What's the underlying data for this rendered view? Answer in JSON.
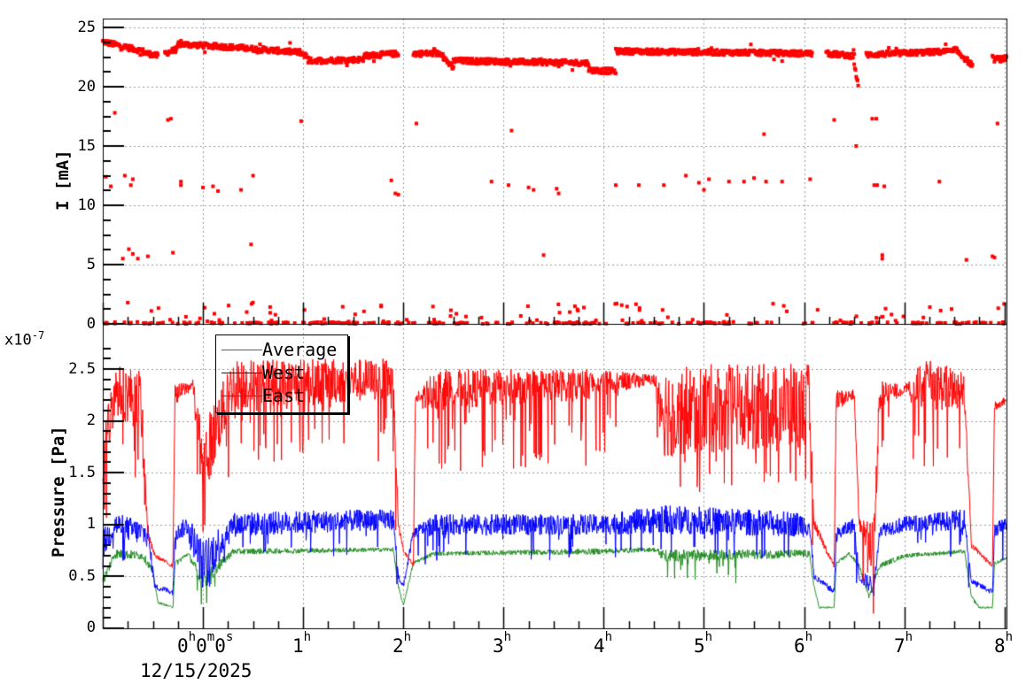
{
  "chart_data": [
    {
      "type": "scatter",
      "title": "",
      "ylabel": "I [mA]",
      "xlabel": "",
      "ylim": [
        0,
        26
      ],
      "yticks": [
        0,
        5,
        10,
        15,
        20,
        25
      ],
      "grid": true,
      "series": [
        {
          "name": "I",
          "color": "#ff0000",
          "baseline_segments_hours": [
            {
              "x0": -1.0,
              "x1": -0.6,
              "y0": 23.8,
              "y1": 23.0
            },
            {
              "x0": -0.6,
              "x1": -0.45,
              "y0": 22.9,
              "y1": 22.6
            },
            {
              "x0": -0.38,
              "x1": -0.25,
              "y0": 22.8,
              "y1": 23.2
            },
            {
              "x0": -0.25,
              "x1": 0.35,
              "y0": 23.6,
              "y1": 23.3
            },
            {
              "x0": 0.35,
              "x1": 0.95,
              "y0": 23.3,
              "y1": 22.9
            },
            {
              "x0": 0.95,
              "x1": 1.05,
              "y0": 23.0,
              "y1": 22.5
            },
            {
              "x0": 1.05,
              "x1": 1.6,
              "y0": 22.2,
              "y1": 22.3
            },
            {
              "x0": 1.6,
              "x1": 1.95,
              "y0": 22.6,
              "y1": 22.8
            },
            {
              "x0": 2.1,
              "x1": 2.4,
              "y0": 22.8,
              "y1": 22.8
            },
            {
              "x0": 2.4,
              "x1": 2.5,
              "y0": 22.5,
              "y1": 21.5
            },
            {
              "x0": 2.5,
              "x1": 3.85,
              "y0": 22.2,
              "y1": 22.0
            },
            {
              "x0": 3.85,
              "x1": 4.12,
              "y0": 21.4,
              "y1": 21.3
            },
            {
              "x0": 4.12,
              "x1": 6.08,
              "y0": 23.0,
              "y1": 22.8
            },
            {
              "x0": 6.22,
              "x1": 6.5,
              "y0": 22.8,
              "y1": 22.6
            },
            {
              "x0": 6.5,
              "x1": 6.54,
              "y0": 22.0,
              "y1": 20.0
            },
            {
              "x0": 6.62,
              "x1": 7.5,
              "y0": 22.7,
              "y1": 23.0
            },
            {
              "x0": 7.5,
              "x1": 7.68,
              "y0": 23.2,
              "y1": 21.8
            },
            {
              "x0": 7.88,
              "x1": 8.02,
              "y0": 22.3,
              "y1": 22.4
            }
          ],
          "outliers": [
            [
              -0.88,
              17.8
            ],
            [
              -0.97,
              12.4
            ],
            [
              -0.92,
              11.6
            ],
            [
              -0.78,
              12.5
            ],
            [
              -0.7,
              12.2
            ],
            [
              -0.72,
              11.7
            ],
            [
              -0.74,
              6.3
            ],
            [
              -0.8,
              5.5
            ],
            [
              -0.7,
              5.9
            ],
            [
              -0.65,
              5.5
            ],
            [
              -0.55,
              5.7
            ],
            [
              -0.35,
              17.2
            ],
            [
              -0.32,
              17.3
            ],
            [
              -0.3,
              6.0
            ],
            [
              -0.22,
              12.0
            ],
            [
              -0.22,
              11.7
            ],
            [
              0.0,
              11.5
            ],
            [
              0.1,
              11.6
            ],
            [
              0.15,
              11.2
            ],
            [
              0.38,
              11.3
            ],
            [
              0.5,
              12.5
            ],
            [
              0.48,
              6.7
            ],
            [
              0.98,
              17.1
            ],
            [
              1.88,
              12.1
            ],
            [
              1.92,
              11.0
            ],
            [
              1.95,
              10.9
            ],
            [
              2.13,
              16.9
            ],
            [
              2.88,
              12.0
            ],
            [
              3.05,
              11.7
            ],
            [
              3.08,
              16.3
            ],
            [
              3.25,
              11.5
            ],
            [
              3.3,
              11.3
            ],
            [
              3.4,
              5.8
            ],
            [
              3.53,
              11.4
            ],
            [
              3.55,
              11.0
            ],
            [
              4.12,
              11.7
            ],
            [
              4.35,
              11.7
            ],
            [
              4.6,
              11.7
            ],
            [
              4.82,
              12.5
            ],
            [
              4.95,
              11.9
            ],
            [
              5.0,
              11.3
            ],
            [
              5.05,
              12.2
            ],
            [
              5.25,
              12.0
            ],
            [
              5.4,
              12.0
            ],
            [
              5.5,
              12.3
            ],
            [
              5.6,
              16.0
            ],
            [
              5.62,
              12.0
            ],
            [
              5.78,
              12.0
            ],
            [
              6.06,
              12.2
            ],
            [
              6.3,
              17.2
            ],
            [
              6.52,
              15.0
            ],
            [
              6.68,
              17.3
            ],
            [
              6.72,
              17.3
            ],
            [
              6.7,
              11.7
            ],
            [
              6.73,
              11.7
            ],
            [
              6.8,
              11.6
            ],
            [
              6.78,
              5.8
            ],
            [
              6.78,
              5.5
            ],
            [
              7.35,
              12.0
            ],
            [
              7.62,
              5.4
            ],
            [
              7.88,
              5.7
            ],
            [
              7.9,
              5.6
            ],
            [
              7.93,
              16.9
            ]
          ],
          "note": "dense cluster of points near 0-1.8 mA along the bottom; gaps in baseline between runs"
        }
      ]
    },
    {
      "type": "line",
      "title": "",
      "ylabel": "Pressure [Pa]",
      "xlabel": "",
      "y_multiplier": "x10^-7",
      "ylim": [
        0,
        2.75
      ],
      "yticks": [
        0,
        0.5,
        1,
        1.5,
        2,
        2.5
      ],
      "grid": true,
      "legend_position": "upper-left",
      "x": {
        "unit": "hours",
        "range": [
          -1.0,
          8.02
        ],
        "tick_labels": [
          "0h0m0s",
          "1h",
          "2h",
          "3h",
          "4h",
          "5h",
          "6h",
          "7h",
          "8h"
        ],
        "tick_values": [
          0,
          1,
          2,
          3,
          4,
          5,
          6,
          7,
          8
        ],
        "date_label": "12/15/2025"
      },
      "series": [
        {
          "name": "Average",
          "color": "#228b22",
          "segments_hours": [
            [
              -1.0,
              0.45,
              0.05
            ],
            [
              -0.88,
              0.72,
              0.05
            ],
            [
              -0.6,
              0.7,
              0.04
            ],
            [
              -0.5,
              0.55,
              0.03
            ],
            [
              -0.45,
              0.25,
              0.01
            ],
            [
              -0.3,
              0.2,
              0.01
            ],
            [
              -0.28,
              0.62,
              0.03
            ],
            [
              -0.15,
              0.72,
              0.02
            ],
            [
              0.0,
              0.45,
              0.08
            ],
            [
              0.3,
              0.74,
              0.03
            ],
            [
              1.9,
              0.76,
              0.02
            ],
            [
              1.95,
              0.4,
              0.02
            ],
            [
              2.0,
              0.22,
              0.01
            ],
            [
              2.1,
              0.63,
              0.02
            ],
            [
              2.3,
              0.72,
              0.02
            ],
            [
              3.9,
              0.74,
              0.03
            ],
            [
              4.5,
              0.76,
              0.02
            ],
            [
              4.6,
              0.7,
              0.06
            ],
            [
              6.05,
              0.72,
              0.04
            ],
            [
              6.1,
              0.4,
              0.02
            ],
            [
              6.15,
              0.2,
              0.01
            ],
            [
              6.3,
              0.2,
              0.01
            ],
            [
              6.32,
              0.62,
              0.02
            ],
            [
              6.45,
              0.72,
              0.02
            ],
            [
              6.55,
              0.6,
              0.02
            ],
            [
              6.65,
              0.3,
              0.02
            ],
            [
              6.75,
              0.6,
              0.03
            ],
            [
              7.0,
              0.7,
              0.02
            ],
            [
              7.6,
              0.74,
              0.02
            ],
            [
              7.67,
              0.3,
              0.02
            ],
            [
              7.75,
              0.2,
              0.01
            ],
            [
              7.88,
              0.2,
              0.01
            ],
            [
              7.9,
              0.62,
              0.02
            ],
            [
              8.02,
              0.68,
              0.01
            ]
          ]
        },
        {
          "name": "West",
          "color": "#0000ff",
          "segments_hours": [
            [
              -1.0,
              0.8,
              0.15
            ],
            [
              -0.88,
              1.0,
              0.12
            ],
            [
              -0.55,
              0.9,
              0.12
            ],
            [
              -0.48,
              0.4,
              0.03
            ],
            [
              -0.3,
              0.35,
              0.03
            ],
            [
              -0.28,
              0.9,
              0.07
            ],
            [
              -0.15,
              1.0,
              0.1
            ],
            [
              0.0,
              0.6,
              0.25
            ],
            [
              0.3,
              1.0,
              0.12
            ],
            [
              1.9,
              1.05,
              0.1
            ],
            [
              1.95,
              0.5,
              0.03
            ],
            [
              2.0,
              0.4,
              0.03
            ],
            [
              2.1,
              0.92,
              0.05
            ],
            [
              2.3,
              1.0,
              0.1
            ],
            [
              4.0,
              1.0,
              0.1
            ],
            [
              4.6,
              1.05,
              0.14
            ],
            [
              6.05,
              1.0,
              0.12
            ],
            [
              6.1,
              0.5,
              0.03
            ],
            [
              6.3,
              0.35,
              0.03
            ],
            [
              6.32,
              0.9,
              0.07
            ],
            [
              6.5,
              1.0,
              0.07
            ],
            [
              6.55,
              0.5,
              0.05
            ],
            [
              6.7,
              0.4,
              0.1
            ],
            [
              6.75,
              0.95,
              0.07
            ],
            [
              7.0,
              1.0,
              0.08
            ],
            [
              7.6,
              1.05,
              0.1
            ],
            [
              7.67,
              0.45,
              0.03
            ],
            [
              7.88,
              0.35,
              0.03
            ],
            [
              7.9,
              0.95,
              0.07
            ],
            [
              8.02,
              1.0,
              0.07
            ]
          ]
        },
        {
          "name": "East",
          "color": "#ff0000",
          "segments_hours": [
            [
              -1.0,
              1.6,
              0.3
            ],
            [
              -0.88,
              2.3,
              0.25
            ],
            [
              -0.62,
              2.2,
              0.3
            ],
            [
              -0.55,
              0.9,
              0.05
            ],
            [
              -0.48,
              0.7,
              0.02
            ],
            [
              -0.3,
              0.6,
              0.02
            ],
            [
              -0.28,
              2.25,
              0.1
            ],
            [
              -0.1,
              2.35,
              0.05
            ],
            [
              0.0,
              1.6,
              0.35
            ],
            [
              0.3,
              2.35,
              0.25
            ],
            [
              1.9,
              2.4,
              0.2
            ],
            [
              1.95,
              1.0,
              0.05
            ],
            [
              2.0,
              0.75,
              0.02
            ],
            [
              2.1,
              0.6,
              0.02
            ],
            [
              2.12,
              2.2,
              0.05
            ],
            [
              2.3,
              2.3,
              0.2
            ],
            [
              3.8,
              2.35,
              0.15
            ],
            [
              4.5,
              2.4,
              0.05
            ],
            [
              4.6,
              2.1,
              0.45
            ],
            [
              6.05,
              2.15,
              0.4
            ],
            [
              6.1,
              1.0,
              0.05
            ],
            [
              6.3,
              0.6,
              0.02
            ],
            [
              6.32,
              2.2,
              0.1
            ],
            [
              6.5,
              2.25,
              0.05
            ],
            [
              6.55,
              1.0,
              0.05
            ],
            [
              6.7,
              0.8,
              0.3
            ],
            [
              6.75,
              2.25,
              0.15
            ],
            [
              7.0,
              2.3,
              0.04
            ],
            [
              7.2,
              2.35,
              0.25
            ],
            [
              7.6,
              2.3,
              0.2
            ],
            [
              7.67,
              0.8,
              0.03
            ],
            [
              7.88,
              0.6,
              0.02
            ],
            [
              7.9,
              2.15,
              0.06
            ],
            [
              8.02,
              2.2,
              0.03
            ]
          ]
        }
      ]
    }
  ],
  "top_plot": {
    "ylabel": "I [mA]",
    "ytick_labels": [
      "0",
      "5",
      "10",
      "15",
      "20",
      "25"
    ]
  },
  "bottom_plot": {
    "ylabel": "Pressure [Pa]",
    "multiplier_label": "x10",
    "multiplier_exp": "-7",
    "ytick_labels": [
      "0",
      "0.5",
      "1",
      "1.5",
      "2",
      "2.5"
    ],
    "legend": [
      {
        "label": "Average",
        "color": "#228b22"
      },
      {
        "label": "West",
        "color": "#0000ff"
      },
      {
        "label": "East",
        "color": "#ff0000"
      }
    ]
  },
  "x_axis": {
    "first_label": {
      "h": "0",
      "m": "0",
      "s": "0"
    },
    "hour_labels": [
      "1",
      "2",
      "3",
      "4",
      "5",
      "6",
      "7",
      "8"
    ],
    "hour_suffix": "h",
    "min_suffix": "m",
    "sec_suffix": "s",
    "date_label": "12/15/2025"
  }
}
